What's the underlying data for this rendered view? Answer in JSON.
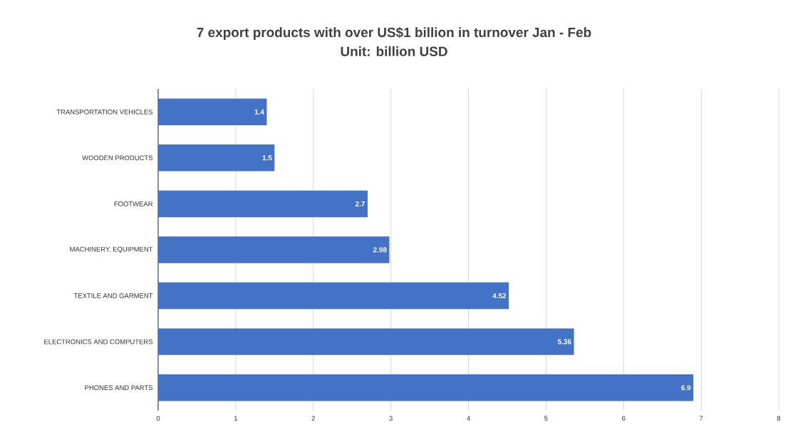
{
  "chart_data": {
    "type": "bar",
    "orientation": "horizontal",
    "title": "7 export products with over US$1 billion in turnover Jan - Feb",
    "subtitle": "Unit: billion USD",
    "categories": [
      "TRANSPORTATION VEHICLES",
      "WOODEN PRODUCTS",
      "FOOTWEAR",
      "MACHINERY, EQUIPMENT",
      "TEXTILE AND GARMENT",
      "ELECTRONICS AND COMPUTERS",
      "PHONES AND PARTS"
    ],
    "values": [
      1.4,
      1.5,
      2.7,
      2.98,
      4.52,
      5.36,
      6.9
    ],
    "color": "#4472c4",
    "xlim": [
      0,
      8
    ],
    "xticks": [
      0,
      1,
      2,
      3,
      4,
      5,
      6,
      7,
      8
    ],
    "grid": "x",
    "data_labels": true
  }
}
